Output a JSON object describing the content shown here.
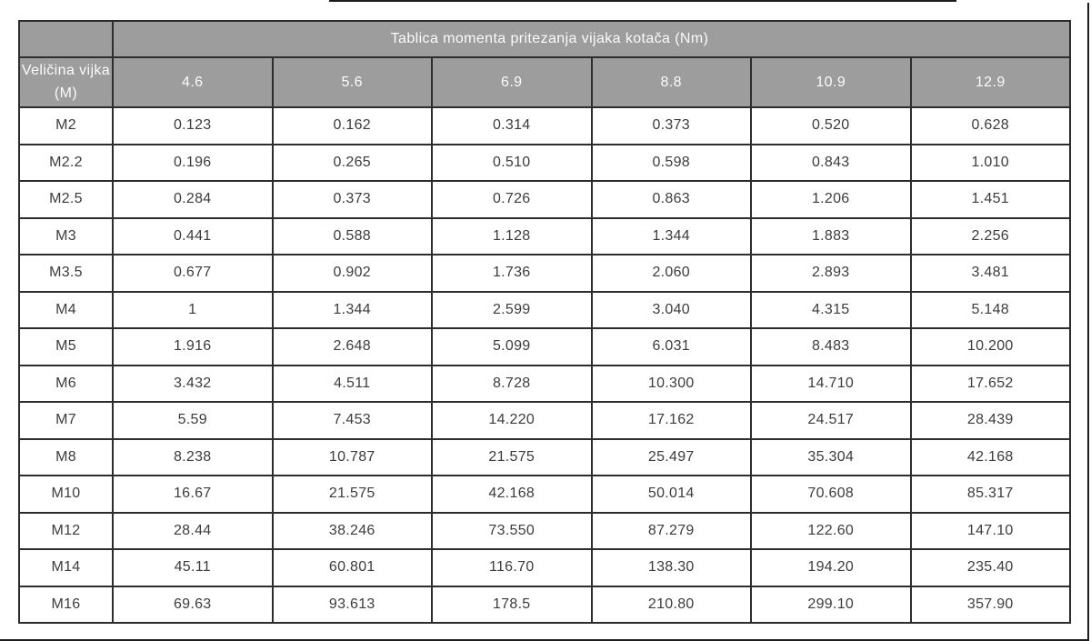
{
  "table": {
    "title": "Tablica momenta pritezanja vijaka kotača (Nm)",
    "corner_label": "Veličina vijka (M)",
    "columns": [
      "4.6",
      "5.6",
      "6.9",
      "8.8",
      "10.9",
      "12.9"
    ],
    "rows": [
      {
        "label": "M2",
        "values": [
          "0.123",
          "0.162",
          "0.314",
          "0.373",
          "0.520",
          "0.628"
        ]
      },
      {
        "label": "M2.2",
        "values": [
          "0.196",
          "0.265",
          "0.510",
          "0.598",
          "0.843",
          "1.010"
        ]
      },
      {
        "label": "M2.5",
        "values": [
          "0.284",
          "0.373",
          "0.726",
          "0.863",
          "1.206",
          "1.451"
        ]
      },
      {
        "label": "M3",
        "values": [
          "0.441",
          "0.588",
          "1.128",
          "1.344",
          "1.883",
          "2.256"
        ]
      },
      {
        "label": "M3.5",
        "values": [
          "0.677",
          "0.902",
          "1.736",
          "2.060",
          "2.893",
          "3.481"
        ]
      },
      {
        "label": "M4",
        "values": [
          "1",
          "1.344",
          "2.599",
          "3.040",
          "4.315",
          "5.148"
        ]
      },
      {
        "label": "M5",
        "values": [
          "1.916",
          "2.648",
          "5.099",
          "6.031",
          "8.483",
          "10.200"
        ]
      },
      {
        "label": "M6",
        "values": [
          "3.432",
          "4.511",
          "8.728",
          "10.300",
          "14.710",
          "17.652"
        ]
      },
      {
        "label": "M7",
        "values": [
          "5.59",
          "7.453",
          "14.220",
          "17.162",
          "24.517",
          "28.439"
        ]
      },
      {
        "label": "M8",
        "values": [
          "8.238",
          "10.787",
          "21.575",
          "25.497",
          "35.304",
          "42.168"
        ]
      },
      {
        "label": "M10",
        "values": [
          "16.67",
          "21.575",
          "42.168",
          "50.014",
          "70.608",
          "85.317"
        ]
      },
      {
        "label": "M12",
        "values": [
          "28.44",
          "38.246",
          "73.550",
          "87.279",
          "122.60",
          "147.10"
        ]
      },
      {
        "label": "M14",
        "values": [
          "45.11",
          "60.801",
          "116.70",
          "138.30",
          "194.20",
          "235.40"
        ]
      },
      {
        "label": "M16",
        "values": [
          "69.63",
          "93.613",
          "178.5",
          "210.80",
          "299.10",
          "357.90"
        ]
      }
    ],
    "colors": {
      "header_bg": "#9d9d9d",
      "header_text": "#fbfbfb",
      "border": "#2d2d2d",
      "cell_text": "#3c3c3c",
      "frame": "#1c1c1c",
      "page_bg": "#ffffff"
    }
  }
}
